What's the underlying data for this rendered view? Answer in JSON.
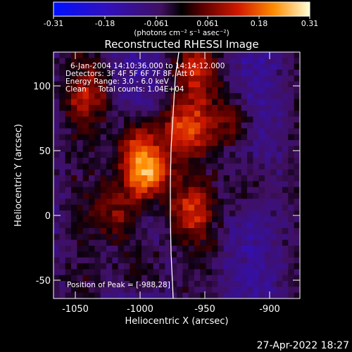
{
  "colorbar": {
    "ticks": [
      "-0.31",
      "-0.18",
      "-0.061",
      "0.061",
      "0.18",
      "0.31"
    ],
    "units": "(photons cm⁻² s⁻¹ asec⁻²)"
  },
  "plot": {
    "title": "Reconstructed RHESSI Image",
    "info": [
      "6-Jan-2004 14:10:36.000 to 14:14:12.000",
      "Detectors: 3F 4F 5F 6F 7F 8F, Att 0",
      "Energy Range: 3.0 - 6.0 keV",
      "Clean     Total counts: 1.04E+04"
    ],
    "peak_label": "Position of Peak = [-988,28]",
    "xlabel": "Heliocentric X (arcsec)",
    "ylabel": "Heliocentric Y (arcsec)",
    "xticks": [
      "-1050",
      "-1000",
      "-950",
      "-900"
    ],
    "yticks": [
      "100",
      "50",
      "0",
      "-50"
    ]
  },
  "footer": {
    "timestamp": "27-Apr-2022 18:27"
  },
  "chart_data": {
    "type": "heatmap",
    "title": "Reconstructed RHESSI Image",
    "xlabel": "Heliocentric X (arcsec)",
    "ylabel": "Heliocentric Y (arcsec)",
    "xlim": [
      -1066,
      -876
    ],
    "ylim": [
      -66,
      124
    ],
    "colorbar_range": [
      -0.31,
      0.31
    ],
    "colorbar_ticks": [
      -0.31,
      -0.18,
      -0.061,
      0.061,
      0.18,
      0.31
    ],
    "peak": [
      -988,
      28
    ],
    "sources": [
      {
        "x": -995,
        "y": 30,
        "amp": 0.31
      },
      {
        "x": -1000,
        "y": 55,
        "amp": 0.18
      },
      {
        "x": -1040,
        "y": 90,
        "amp": 0.14
      },
      {
        "x": -1015,
        "y": 0,
        "amp": 0.15
      },
      {
        "x": -965,
        "y": 65,
        "amp": 0.2
      },
      {
        "x": -955,
        "y": 110,
        "amp": 0.16
      },
      {
        "x": -960,
        "y": 0,
        "amp": 0.16
      },
      {
        "x": -1000,
        "y": -40,
        "amp": 0.12
      },
      {
        "x": -930,
        "y": 70,
        "amp": 0.13
      },
      {
        "x": -915,
        "y": 20,
        "amp": 0.1
      }
    ]
  }
}
